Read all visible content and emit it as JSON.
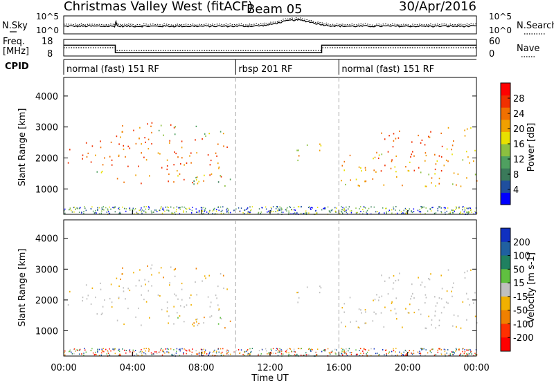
{
  "chart_data": {
    "type": "heatmap",
    "header": {
      "title": "Christmas Valley West (fitACF)",
      "beam": "Beam 05",
      "date": "30/Apr/2016"
    },
    "top_panels": {
      "nsky": {
        "left_label": "N.Sky",
        "right_label": "N.Search",
        "left_ticks": [
          "10^5",
          "10^0"
        ],
        "right_ticks": [
          "10^5",
          "10^0"
        ]
      },
      "freq": {
        "left_label_line1": "Freq.",
        "left_label_line2": "[MHz]",
        "right_label": "Nave",
        "left_ticks": [
          "18",
          "8"
        ],
        "right_ticks": [
          "60",
          "0"
        ],
        "freq_steps": [
          {
            "t0": 0,
            "t1": 3.0,
            "mhz": 14.5
          },
          {
            "t0": 3.0,
            "t1": 15.0,
            "mhz": 10.0
          },
          {
            "t0": 15.0,
            "t1": 24.0,
            "mhz": 14.5
          }
        ],
        "nave_steps": [
          {
            "t0": 0,
            "t1": 3.0,
            "val": 30
          },
          {
            "t0": 3.0,
            "t1": 15.0,
            "val": 20
          },
          {
            "t0": 15.0,
            "t1": 24.0,
            "val": 30
          }
        ]
      },
      "cpid": {
        "label": "CPID",
        "segments": [
          {
            "t0": 0,
            "t1": 10.0,
            "text": "normal (fast) 151 RF"
          },
          {
            "t0": 10.0,
            "t1": 16.0,
            "text": "rbsp 201 RF"
          },
          {
            "t0": 16.0,
            "t1": 24.0,
            "text": "normal (fast) 151 RF"
          }
        ]
      }
    },
    "x_axis": {
      "label": "Time UT",
      "range": [
        0,
        24
      ],
      "ticks": [
        "00:00",
        "04:00",
        "08:00",
        "12:00",
        "16:00",
        "20:00",
        "00:00"
      ],
      "tick_values": [
        0,
        4,
        8,
        12,
        16,
        20,
        24
      ]
    },
    "y_axis": {
      "label": "Slant Range [km]",
      "range": [
        180,
        4600
      ],
      "ticks": [
        1000,
        2000,
        3000,
        4000
      ]
    },
    "power_panel": {
      "colorbar_label": "Power [dB]",
      "colorbar_ticks": [
        "28",
        "24",
        "20",
        "16",
        "12",
        "8",
        "4"
      ],
      "colorbar_tick_values": [
        28,
        24,
        20,
        16,
        12,
        8,
        4
      ],
      "range": [
        0,
        32
      ],
      "colors": [
        "#0000ff",
        "#1f4f9e",
        "#3a7a5a",
        "#4fa060",
        "#8cc040",
        "#e8e000",
        "#f0a000",
        "#f07000",
        "#f03000",
        "#ff0000"
      ]
    },
    "velocity_panel": {
      "colorbar_label": "Velocity [m s-1]",
      "colorbar_ticks": [
        "200",
        "100",
        "50",
        "15",
        "-15",
        "-50",
        "-100",
        "-200"
      ],
      "colors": [
        "#1030c0",
        "#2060a0",
        "#208060",
        "#60c040",
        "#c0c0c0",
        "#f0b000",
        "#f08000",
        "#ff3000",
        "#ff0000"
      ]
    },
    "echo_regions": [
      {
        "t0": 0.0,
        "t1": 3.0,
        "r0": 1750,
        "r1": 2600,
        "power": 28,
        "velocity_class": "gray"
      },
      {
        "t0": 0.0,
        "t1": 3.0,
        "r0": 1500,
        "r1": 1650,
        "power": 14,
        "velocity_class": "gray"
      },
      {
        "t0": 3.0,
        "t1": 6.5,
        "r0": 2500,
        "r1": 3200,
        "power": 28,
        "velocity_class": "orange"
      },
      {
        "t0": 3.0,
        "t1": 9.5,
        "r0": 1200,
        "r1": 2700,
        "power": 26,
        "velocity_class": "gray"
      },
      {
        "t0": 5.5,
        "t1": 9.5,
        "r0": 2700,
        "r1": 3100,
        "power": 14,
        "velocity_class": "orange"
      },
      {
        "t0": 6.0,
        "t1": 9.8,
        "r0": 1100,
        "r1": 1500,
        "power": 12,
        "velocity_class": "green-orange"
      },
      {
        "t0": 13.5,
        "t1": 15.0,
        "r0": 1900,
        "r1": 2600,
        "power": 18,
        "velocity_class": "gray"
      },
      {
        "t0": 16.0,
        "t1": 24.0,
        "r0": 1100,
        "r1": 2200,
        "power": 20,
        "velocity_class": "gray"
      },
      {
        "t0": 18.0,
        "t1": 22.0,
        "r0": 1600,
        "r1": 3000,
        "power": 28,
        "velocity_class": "gray"
      },
      {
        "t0": 22.0,
        "t1": 24.0,
        "r0": 2200,
        "r1": 3000,
        "power": 20,
        "velocity_class": "gray"
      }
    ]
  }
}
